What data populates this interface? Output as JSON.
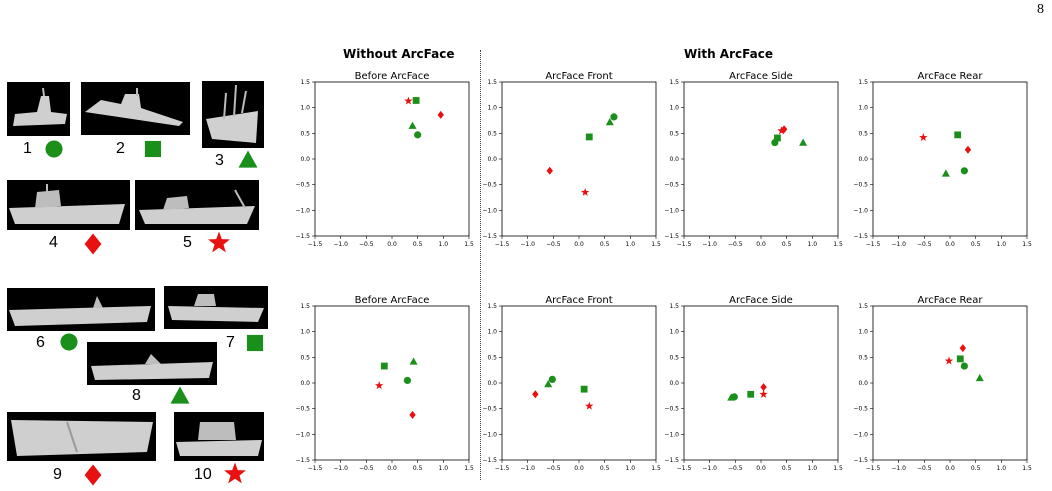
{
  "page_number": "8",
  "headers": {
    "without": "Without ArcFace",
    "with": "With ArcFace"
  },
  "colors": {
    "green": "#1a8f1a",
    "red": "#e81010"
  },
  "boats": [
    {
      "id": "boat-1",
      "label": "1",
      "marker": "circle",
      "color": "green"
    },
    {
      "id": "boat-2",
      "label": "2",
      "marker": "square",
      "color": "green"
    },
    {
      "id": "boat-3",
      "label": "3",
      "marker": "triangle",
      "color": "green"
    },
    {
      "id": "boat-4",
      "label": "4",
      "marker": "diamond",
      "color": "red"
    },
    {
      "id": "boat-5",
      "label": "5",
      "marker": "star",
      "color": "red"
    },
    {
      "id": "boat-6",
      "label": "6",
      "marker": "circle",
      "color": "green"
    },
    {
      "id": "boat-7",
      "label": "7",
      "marker": "square",
      "color": "green"
    },
    {
      "id": "boat-8",
      "label": "8",
      "marker": "triangle",
      "color": "green"
    },
    {
      "id": "boat-9",
      "label": "9",
      "marker": "diamond",
      "color": "red"
    },
    {
      "id": "boat-10",
      "label": "10",
      "marker": "star",
      "color": "red"
    }
  ],
  "chart_data": [
    {
      "type": "scatter",
      "title": "Before ArcFace",
      "xlim": [
        -1.5,
        1.5
      ],
      "ylim": [
        -1.5,
        1.5
      ],
      "ticks": [
        "−1.5",
        "−1.0",
        "−0.5",
        "0.0",
        "0.5",
        "1.0",
        "1.5"
      ],
      "points": [
        {
          "marker": "circle",
          "color": "green",
          "x": 0.5,
          "y": 0.47
        },
        {
          "marker": "square",
          "color": "green",
          "x": 0.47,
          "y": 1.14
        },
        {
          "marker": "triangle",
          "color": "green",
          "x": 0.4,
          "y": 0.65
        },
        {
          "marker": "diamond",
          "color": "red",
          "x": 0.95,
          "y": 0.86
        },
        {
          "marker": "star",
          "color": "red",
          "x": 0.32,
          "y": 1.13
        }
      ]
    },
    {
      "type": "scatter",
      "title": "ArcFace Front",
      "xlim": [
        -1.5,
        1.5
      ],
      "ylim": [
        -1.5,
        1.5
      ],
      "ticks": [
        "−1.5",
        "−1.0",
        "−0.5",
        "0.0",
        "0.5",
        "1.0",
        "1.5"
      ],
      "points": [
        {
          "marker": "circle",
          "color": "green",
          "x": 0.68,
          "y": 0.82
        },
        {
          "marker": "square",
          "color": "green",
          "x": 0.2,
          "y": 0.43
        },
        {
          "marker": "triangle",
          "color": "green",
          "x": 0.6,
          "y": 0.72
        },
        {
          "marker": "diamond",
          "color": "red",
          "x": -0.57,
          "y": -0.23
        },
        {
          "marker": "star",
          "color": "red",
          "x": 0.12,
          "y": -0.65
        }
      ]
    },
    {
      "type": "scatter",
      "title": "ArcFace Side",
      "xlim": [
        -1.5,
        1.5
      ],
      "ylim": [
        -1.5,
        1.5
      ],
      "ticks": [
        "−1.5",
        "−1.0",
        "−0.5",
        "0.0",
        "0.5",
        "1.0",
        "1.5"
      ],
      "points": [
        {
          "marker": "circle",
          "color": "green",
          "x": 0.27,
          "y": 0.32
        },
        {
          "marker": "square",
          "color": "green",
          "x": 0.32,
          "y": 0.41
        },
        {
          "marker": "triangle",
          "color": "green",
          "x": 0.82,
          "y": 0.32
        },
        {
          "marker": "diamond",
          "color": "red",
          "x": 0.45,
          "y": 0.58
        },
        {
          "marker": "star",
          "color": "red",
          "x": 0.4,
          "y": 0.55
        }
      ]
    },
    {
      "type": "scatter",
      "title": "ArcFace Rear",
      "xlim": [
        -1.5,
        1.5
      ],
      "ylim": [
        -1.5,
        1.5
      ],
      "ticks": [
        "−1.5",
        "−1.0",
        "−0.5",
        "0.0",
        "0.5",
        "1.0",
        "1.5"
      ],
      "points": [
        {
          "marker": "circle",
          "color": "green",
          "x": 0.28,
          "y": -0.23
        },
        {
          "marker": "square",
          "color": "green",
          "x": 0.15,
          "y": 0.47
        },
        {
          "marker": "triangle",
          "color": "green",
          "x": -0.08,
          "y": -0.28
        },
        {
          "marker": "diamond",
          "color": "red",
          "x": 0.35,
          "y": 0.18
        },
        {
          "marker": "star",
          "color": "red",
          "x": -0.52,
          "y": 0.42
        }
      ]
    },
    {
      "type": "scatter",
      "title": "Before ArcFace",
      "xlim": [
        -1.5,
        1.5
      ],
      "ylim": [
        -1.5,
        1.5
      ],
      "ticks": [
        "−1.5",
        "−1.0",
        "−0.5",
        "0.0",
        "0.5",
        "1.0",
        "1.5"
      ],
      "points": [
        {
          "marker": "circle",
          "color": "green",
          "x": 0.3,
          "y": 0.05
        },
        {
          "marker": "square",
          "color": "green",
          "x": -0.15,
          "y": 0.33
        },
        {
          "marker": "triangle",
          "color": "green",
          "x": 0.42,
          "y": 0.42
        },
        {
          "marker": "diamond",
          "color": "red",
          "x": 0.4,
          "y": -0.62
        },
        {
          "marker": "star",
          "color": "red",
          "x": -0.25,
          "y": -0.05
        }
      ]
    },
    {
      "type": "scatter",
      "title": "ArcFace Front",
      "xlim": [
        -1.5,
        1.5
      ],
      "ylim": [
        -1.5,
        1.5
      ],
      "ticks": [
        "−1.5",
        "−1.0",
        "−0.5",
        "0.0",
        "0.5",
        "1.0",
        "1.5"
      ],
      "points": [
        {
          "marker": "circle",
          "color": "green",
          "x": -0.52,
          "y": 0.07
        },
        {
          "marker": "square",
          "color": "green",
          "x": 0.1,
          "y": -0.12
        },
        {
          "marker": "triangle",
          "color": "green",
          "x": -0.6,
          "y": -0.02
        },
        {
          "marker": "diamond",
          "color": "red",
          "x": -0.85,
          "y": -0.22
        },
        {
          "marker": "star",
          "color": "red",
          "x": 0.2,
          "y": -0.45
        }
      ]
    },
    {
      "type": "scatter",
      "title": "ArcFace Side",
      "xlim": [
        -1.5,
        1.5
      ],
      "ylim": [
        -1.5,
        1.5
      ],
      "ticks": [
        "−1.5",
        "−1.0",
        "−0.5",
        "0.0",
        "0.5",
        "1.0",
        "1.5"
      ],
      "points": [
        {
          "marker": "circle",
          "color": "green",
          "x": -0.52,
          "y": -0.27
        },
        {
          "marker": "square",
          "color": "green",
          "x": -0.2,
          "y": -0.22
        },
        {
          "marker": "triangle",
          "color": "green",
          "x": -0.58,
          "y": -0.28
        },
        {
          "marker": "diamond",
          "color": "red",
          "x": 0.05,
          "y": -0.08
        },
        {
          "marker": "star",
          "color": "red",
          "x": 0.05,
          "y": -0.22
        }
      ]
    },
    {
      "type": "scatter",
      "title": "ArcFace Rear",
      "xlim": [
        -1.5,
        1.5
      ],
      "ylim": [
        -1.5,
        1.5
      ],
      "ticks": [
        "−1.5",
        "−1.0",
        "−0.5",
        "0.0",
        "0.5",
        "1.0",
        "1.5"
      ],
      "points": [
        {
          "marker": "circle",
          "color": "green",
          "x": 0.28,
          "y": 0.33
        },
        {
          "marker": "square",
          "color": "green",
          "x": 0.2,
          "y": 0.47
        },
        {
          "marker": "triangle",
          "color": "green",
          "x": 0.58,
          "y": 0.1
        },
        {
          "marker": "diamond",
          "color": "red",
          "x": 0.25,
          "y": 0.68
        },
        {
          "marker": "star",
          "color": "red",
          "x": -0.02,
          "y": 0.43
        }
      ]
    }
  ]
}
